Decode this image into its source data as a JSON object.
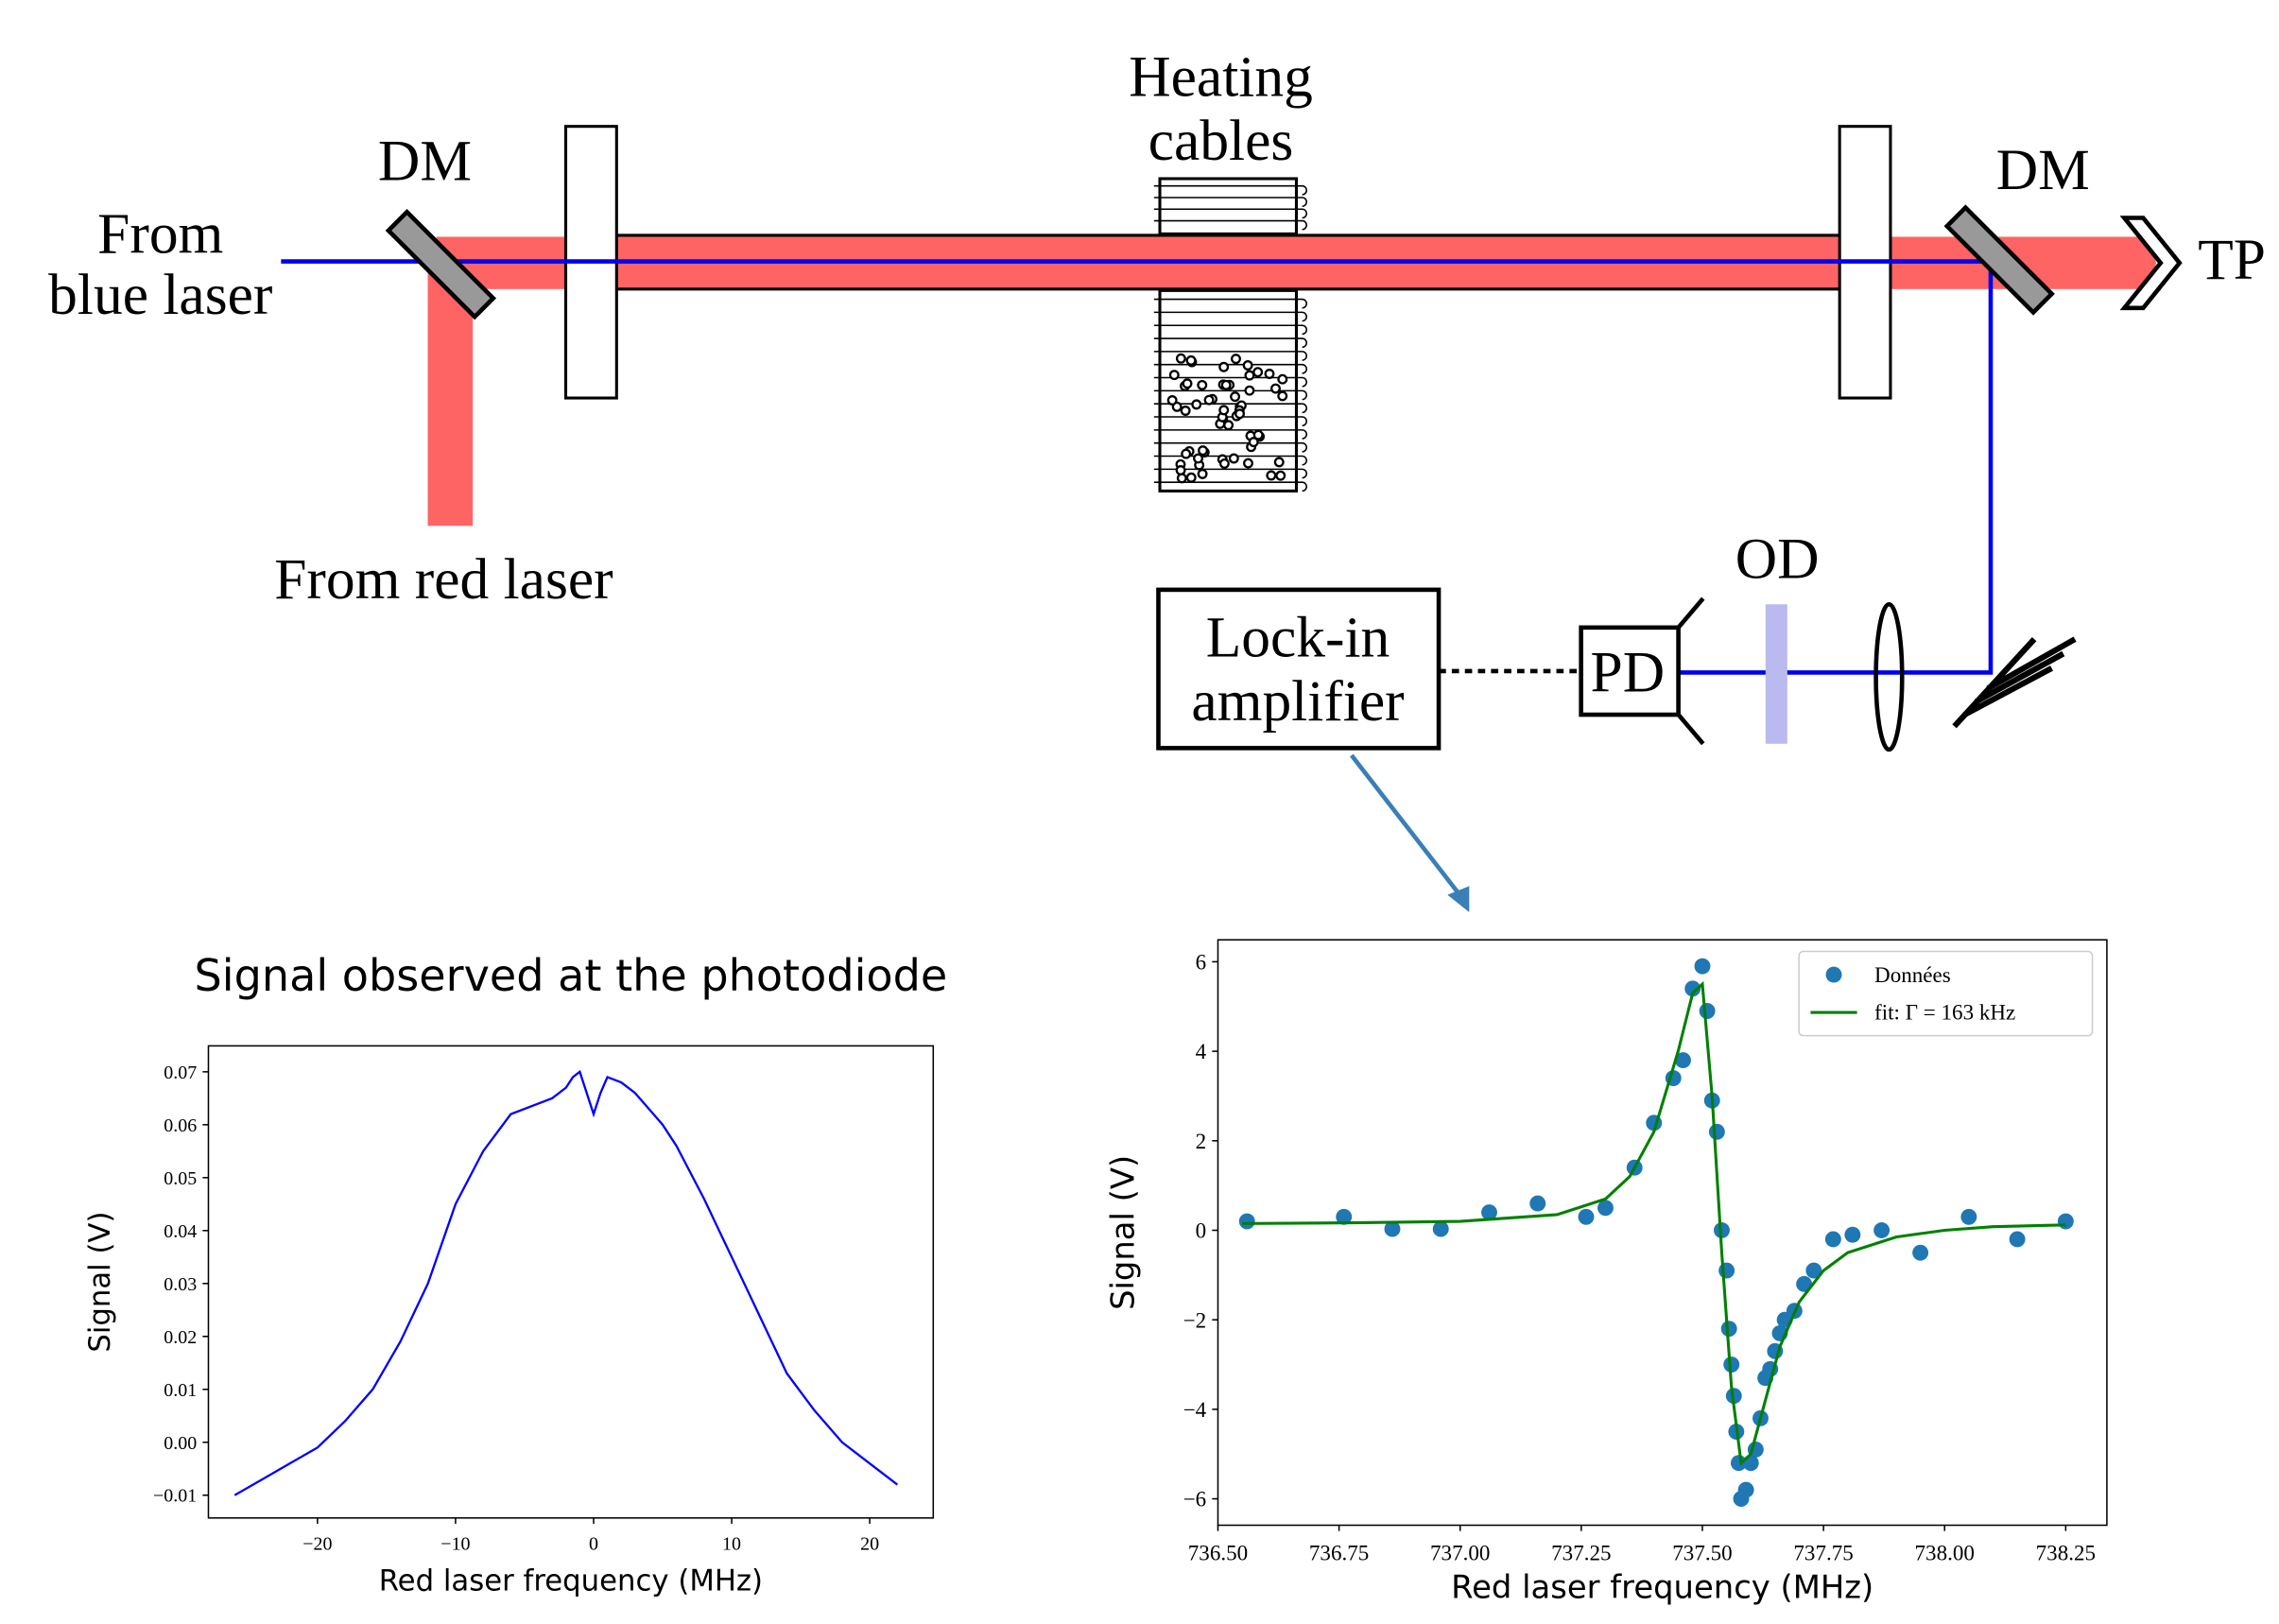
{
  "diagram": {
    "from_blue_laser": [
      "From",
      "blue laser"
    ],
    "from_red_laser": "From red laser",
    "dm_left": "DM",
    "dm_right": "DM",
    "heating_cables": [
      "Heating",
      "cables"
    ],
    "tp": "TP",
    "od": "OD",
    "lock_in_amplifier": [
      "Lock-in",
      "amplifier"
    ],
    "pd": "PD"
  },
  "chart_data": [
    {
      "type": "line",
      "title": "Signal observed at the photodiode",
      "x_label": "Red laser frequency (MHz)",
      "y_label": "Signal (V)",
      "color": "#0000ff",
      "x": [
        -26,
        -24,
        -22,
        -20,
        -18,
        -16,
        -14,
        -12,
        -10,
        -8,
        -6,
        -4,
        -3,
        -2,
        -1.5,
        -1,
        -0.5,
        0,
        0.5,
        1,
        2,
        3,
        4,
        5,
        6,
        8,
        10,
        12,
        14,
        16,
        18,
        20,
        22
      ],
      "values": [
        -0.01,
        -0.007,
        -0.004,
        -0.001,
        0.004,
        0.01,
        0.019,
        0.03,
        0.045,
        0.055,
        0.062,
        0.064,
        0.065,
        0.067,
        0.069,
        0.07,
        0.066,
        0.062,
        0.066,
        0.069,
        0.068,
        0.066,
        0.063,
        0.06,
        0.056,
        0.046,
        0.035,
        0.024,
        0.013,
        0.006,
        0.0,
        -0.004,
        -0.008
      ],
      "xlim": [
        -27.9,
        24.6
      ],
      "xticks": [
        {
          "value": -20,
          "label": "−20"
        },
        {
          "value": -10,
          "label": "−10"
        },
        0,
        10,
        20
      ],
      "ylim": [
        -0.0143,
        0.0749
      ],
      "yticks": [
        {
          "value": -0.01,
          "label": "−0.01"
        },
        {
          "value": 0,
          "label": "0.00"
        },
        0.01,
        0.02,
        0.03,
        0.04,
        0.05,
        0.06,
        0.07
      ],
      "grid": false
    },
    {
      "type": "scatter",
      "x_label": "Red laser frequency (MHz)",
      "y_label": "Signal (V)",
      "legend": "upper right",
      "series": [
        {
          "name": "Données",
          "type": "scatter",
          "color": "#1f77b4",
          "x": [
            736.56,
            736.76,
            736.86,
            736.96,
            737.06,
            737.16,
            737.26,
            737.3,
            737.36,
            737.4,
            737.44,
            737.46,
            737.48,
            737.5,
            737.51,
            737.52,
            737.53,
            737.54,
            737.55,
            737.555,
            737.56,
            737.565,
            737.57,
            737.575,
            737.58,
            737.59,
            737.6,
            737.61,
            737.62,
            737.63,
            737.64,
            737.65,
            737.66,
            737.67,
            737.69,
            737.71,
            737.73,
            737.77,
            737.81,
            737.87,
            737.95,
            738.05,
            738.15,
            738.25
          ],
          "values": [
            0.2,
            0.3,
            0.03,
            0.03,
            0.4,
            0.6,
            0.3,
            0.5,
            1.4,
            2.4,
            3.4,
            3.8,
            5.4,
            5.9,
            4.9,
            2.9,
            2.2,
            0.0,
            -0.9,
            -2.2,
            -3.0,
            -3.7,
            -4.5,
            -5.2,
            -6.0,
            -5.8,
            -5.2,
            -4.9,
            -4.2,
            -3.3,
            -3.1,
            -2.7,
            -2.3,
            -2.0,
            -1.8,
            -1.2,
            -0.9,
            -0.2,
            -0.1,
            0.0,
            -0.5,
            0.3,
            -0.2,
            0.2
          ]
        },
        {
          "name": "fit: Γ = 163 kHz",
          "type": "line",
          "color": "#008000",
          "x": [
            736.55,
            736.8,
            737.0,
            737.2,
            737.3,
            737.35,
            737.4,
            737.45,
            737.48,
            737.5,
            737.52,
            737.54,
            737.56,
            737.58,
            737.6,
            737.63,
            737.66,
            737.7,
            737.75,
            737.8,
            737.9,
            738.0,
            738.1,
            738.25
          ],
          "values": [
            0.15,
            0.17,
            0.2,
            0.35,
            0.7,
            1.2,
            2.2,
            4.0,
            5.3,
            5.5,
            3.0,
            -0.5,
            -3.5,
            -5.2,
            -5.0,
            -3.8,
            -2.6,
            -1.6,
            -0.9,
            -0.5,
            -0.15,
            0.0,
            0.08,
            0.12
          ]
        }
      ],
      "xlim": [
        736.5,
        738.335
      ],
      "xticks": [
        {
          "value": 736.5,
          "label": "736.50"
        },
        736.75,
        {
          "value": 737,
          "label": "737.00"
        },
        737.25,
        {
          "value": 737.5,
          "label": "737.50"
        },
        737.75,
        {
          "value": 738,
          "label": "738.00"
        },
        738.25
      ],
      "ylim": [
        -6.59,
        6.49
      ],
      "yticks": [
        {
          "value": -6,
          "label": "−6"
        },
        {
          "value": -4,
          "label": "−4"
        },
        {
          "value": -2,
          "label": "−2"
        },
        0,
        2,
        4,
        6
      ],
      "grid": false
    }
  ]
}
